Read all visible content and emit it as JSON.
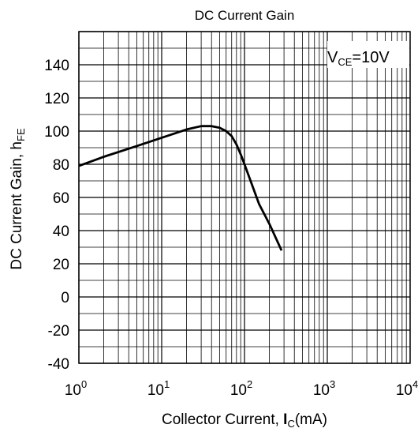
{
  "chart_data": {
    "type": "line",
    "title": "DC Current Gain",
    "xlabel": {
      "main": "Collector Current, ",
      "symbol": "I",
      "subscript": "C",
      "unit": "(mA)"
    },
    "ylabel": {
      "main": "DC Current Gain, h",
      "subscript": "FE"
    },
    "x_scale": "log",
    "xlim": [
      1,
      10000
    ],
    "ylim": [
      -40,
      160
    ],
    "x_ticks": [
      {
        "base": "10",
        "exp": "0",
        "value": 1
      },
      {
        "base": "10",
        "exp": "1",
        "value": 10
      },
      {
        "base": "10",
        "exp": "2",
        "value": 100
      },
      {
        "base": "10",
        "exp": "3",
        "value": 1000
      },
      {
        "base": "10",
        "exp": "4",
        "value": 10000
      }
    ],
    "y_ticks": [
      "-40",
      "-20",
      "0",
      "20",
      "40",
      "60",
      "80",
      "100",
      "120",
      "140"
    ],
    "grid": true,
    "annotation": {
      "main": "V",
      "subscript": "CE",
      "value": "=10V",
      "placement": "top-right"
    },
    "series": [
      {
        "color": "#000000",
        "x": [
          1,
          2,
          5,
          10,
          20,
          30,
          40,
          50,
          60,
          70,
          80,
          90,
          100,
          150,
          200,
          280
        ],
        "y": [
          79,
          84.5,
          91,
          96,
          101,
          103,
          103,
          102,
          100,
          97,
          92,
          86,
          80,
          56,
          44,
          28
        ]
      }
    ]
  }
}
